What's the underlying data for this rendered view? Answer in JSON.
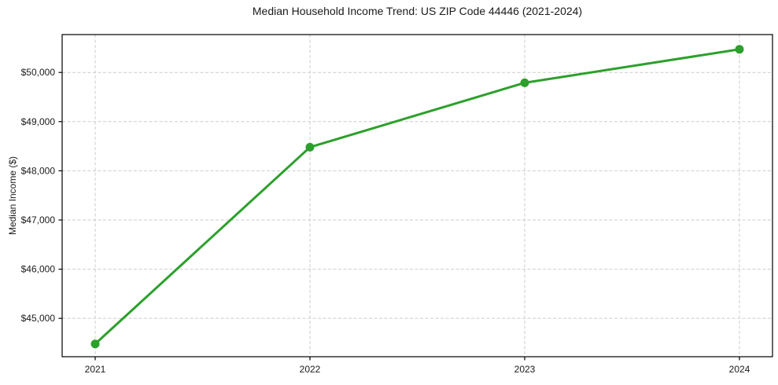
{
  "chart_data": {
    "type": "line",
    "title": "Median Household Income Trend: US ZIP Code 44446 (2021-2024)",
    "xlabel": "",
    "ylabel": "Median Income ($)",
    "categories": [
      "2021",
      "2022",
      "2023",
      "2024"
    ],
    "series": [
      {
        "name": "Median Household Income",
        "values": [
          44480,
          48480,
          49790,
          50470
        ]
      }
    ],
    "x_tick_labels": [
      "2021",
      "2022",
      "2023",
      "2024"
    ],
    "y_ticks": [
      45000,
      46000,
      47000,
      48000,
      49000,
      50000
    ],
    "y_tick_labels": [
      "$45,000",
      "$46,000",
      "$47,000",
      "$48,000",
      "$49,000",
      "$50,000"
    ],
    "ylim": [
      44220,
      50770
    ],
    "grid": true,
    "grid_style": "dashed",
    "legend_position": "none",
    "line_color": "#2ca02c",
    "marker": "circle",
    "marker_diameter_px": 11,
    "grid_color": "#cccccc",
    "axes_color": "#000000",
    "text_color": "#1a1a1a",
    "background": "#ffffff"
  }
}
